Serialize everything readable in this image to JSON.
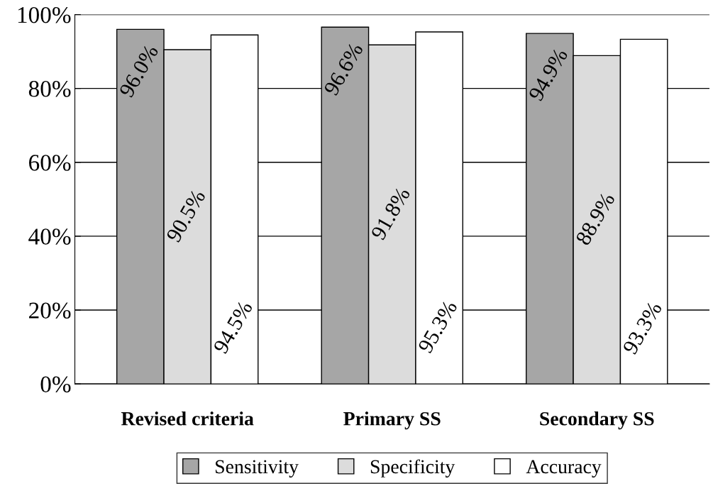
{
  "chart_data": {
    "type": "bar",
    "categories": [
      "Revised criteria",
      "Primary SS",
      "Secondary SS"
    ],
    "series": [
      {
        "name": "Sensitivity",
        "color": "#a6a6a6",
        "values": [
          96.0,
          96.6,
          94.9
        ],
        "value_labels": [
          "96.0%",
          "96.6%",
          "94.9%"
        ]
      },
      {
        "name": "Specificity",
        "color": "#dcdcdc",
        "values": [
          90.5,
          91.8,
          88.9
        ],
        "value_labels": [
          "90.5%",
          "91.8%",
          "88.9%"
        ]
      },
      {
        "name": "Accuracy",
        "color": "#ffffff",
        "values": [
          94.5,
          95.3,
          93.3
        ],
        "value_labels": [
          "94.5%",
          "95.3%",
          "93.3%"
        ]
      }
    ],
    "ylim": [
      0,
      100
    ],
    "yticks": [
      {
        "value": 0,
        "label": "0%"
      },
      {
        "value": 20,
        "label": "20%"
      },
      {
        "value": 40,
        "label": "40%"
      },
      {
        "value": 60,
        "label": "60%"
      },
      {
        "value": 80,
        "label": "80%"
      },
      {
        "value": 100,
        "label": "100%"
      }
    ],
    "grid": "y",
    "legend": "bottom"
  }
}
